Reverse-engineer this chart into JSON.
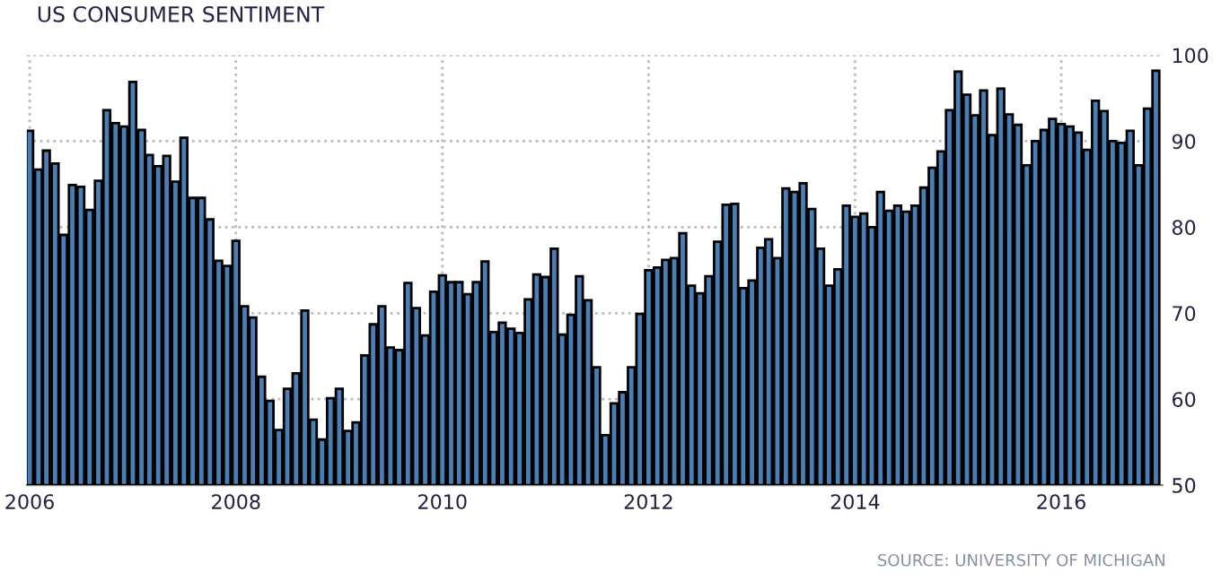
{
  "chart_data": {
    "type": "bar",
    "title": "US CONSUMER SENTIMENT",
    "annotations": [
      "SOURCE: UNIVERSITY OF MICHIGAN"
    ],
    "x": [
      "2006-01",
      "2006-02",
      "2006-03",
      "2006-04",
      "2006-05",
      "2006-06",
      "2006-07",
      "2006-08",
      "2006-09",
      "2006-10",
      "2006-11",
      "2006-12",
      "2007-01",
      "2007-02",
      "2007-03",
      "2007-04",
      "2007-05",
      "2007-06",
      "2007-07",
      "2007-08",
      "2007-09",
      "2007-10",
      "2007-11",
      "2007-12",
      "2008-01",
      "2008-02",
      "2008-03",
      "2008-04",
      "2008-05",
      "2008-06",
      "2008-07",
      "2008-08",
      "2008-09",
      "2008-10",
      "2008-11",
      "2008-12",
      "2009-01",
      "2009-02",
      "2009-03",
      "2009-04",
      "2009-05",
      "2009-06",
      "2009-07",
      "2009-08",
      "2009-09",
      "2009-10",
      "2009-11",
      "2009-12",
      "2010-01",
      "2010-02",
      "2010-03",
      "2010-04",
      "2010-05",
      "2010-06",
      "2010-07",
      "2010-08",
      "2010-09",
      "2010-10",
      "2010-11",
      "2010-12",
      "2011-01",
      "2011-02",
      "2011-03",
      "2011-04",
      "2011-05",
      "2011-06",
      "2011-07",
      "2011-08",
      "2011-09",
      "2011-10",
      "2011-11",
      "2011-12",
      "2012-01",
      "2012-02",
      "2012-03",
      "2012-04",
      "2012-05",
      "2012-06",
      "2012-07",
      "2012-08",
      "2012-09",
      "2012-10",
      "2012-11",
      "2012-12",
      "2013-01",
      "2013-02",
      "2013-03",
      "2013-04",
      "2013-05",
      "2013-06",
      "2013-07",
      "2013-08",
      "2013-09",
      "2013-10",
      "2013-11",
      "2013-12",
      "2014-01",
      "2014-02",
      "2014-03",
      "2014-04",
      "2014-05",
      "2014-06",
      "2014-07",
      "2014-08",
      "2014-09",
      "2014-10",
      "2014-11",
      "2014-12",
      "2015-01",
      "2015-02",
      "2015-03",
      "2015-04",
      "2015-05",
      "2015-06",
      "2015-07",
      "2015-08",
      "2015-09",
      "2015-10",
      "2015-11",
      "2015-12",
      "2016-01",
      "2016-02",
      "2016-03",
      "2016-04",
      "2016-05",
      "2016-06",
      "2016-07",
      "2016-08",
      "2016-09",
      "2016-10",
      "2016-11",
      "2016-12"
    ],
    "values": [
      91.2,
      86.7,
      88.9,
      87.4,
      79.1,
      84.9,
      84.7,
      82.0,
      85.4,
      93.6,
      92.1,
      91.7,
      96.9,
      91.3,
      88.4,
      87.1,
      88.3,
      85.3,
      90.4,
      83.4,
      83.4,
      80.9,
      76.1,
      75.5,
      78.4,
      70.8,
      69.5,
      62.6,
      59.8,
      56.4,
      61.2,
      63.0,
      70.3,
      57.6,
      55.3,
      60.1,
      61.2,
      56.3,
      57.3,
      65.1,
      68.7,
      70.8,
      66.0,
      65.7,
      73.5,
      70.6,
      67.4,
      72.5,
      74.4,
      73.6,
      73.6,
      72.2,
      73.6,
      76.0,
      67.8,
      68.9,
      68.2,
      67.7,
      71.6,
      74.5,
      74.2,
      77.5,
      67.5,
      69.8,
      74.3,
      71.5,
      63.7,
      55.8,
      59.5,
      60.8,
      63.7,
      69.9,
      75.0,
      75.3,
      76.2,
      76.4,
      79.3,
      73.2,
      72.3,
      74.3,
      78.3,
      82.6,
      82.7,
      72.9,
      73.8,
      77.6,
      78.6,
      76.4,
      84.5,
      84.1,
      85.1,
      82.1,
      77.5,
      73.2,
      75.1,
      82.5,
      81.2,
      81.6,
      80.0,
      84.1,
      81.9,
      82.5,
      81.8,
      82.5,
      84.6,
      86.9,
      88.8,
      93.6,
      98.1,
      95.4,
      93.0,
      95.9,
      90.7,
      96.1,
      93.1,
      91.9,
      87.2,
      90.0,
      91.3,
      92.6,
      92.0,
      91.7,
      91.0,
      89.0,
      94.7,
      93.5,
      90.0,
      89.8,
      91.2,
      87.2,
      93.8,
      98.2
    ],
    "color": "#4a7fb5",
    "xlim": [
      "2005-12-22",
      "2016-12-24"
    ],
    "xticks": [
      "2006",
      "2008",
      "2010",
      "2012",
      "2014",
      "2016"
    ],
    "ylim": [
      50,
      100
    ],
    "yticks": [
      50,
      60,
      70,
      80,
      90,
      100
    ],
    "grid": true
  }
}
